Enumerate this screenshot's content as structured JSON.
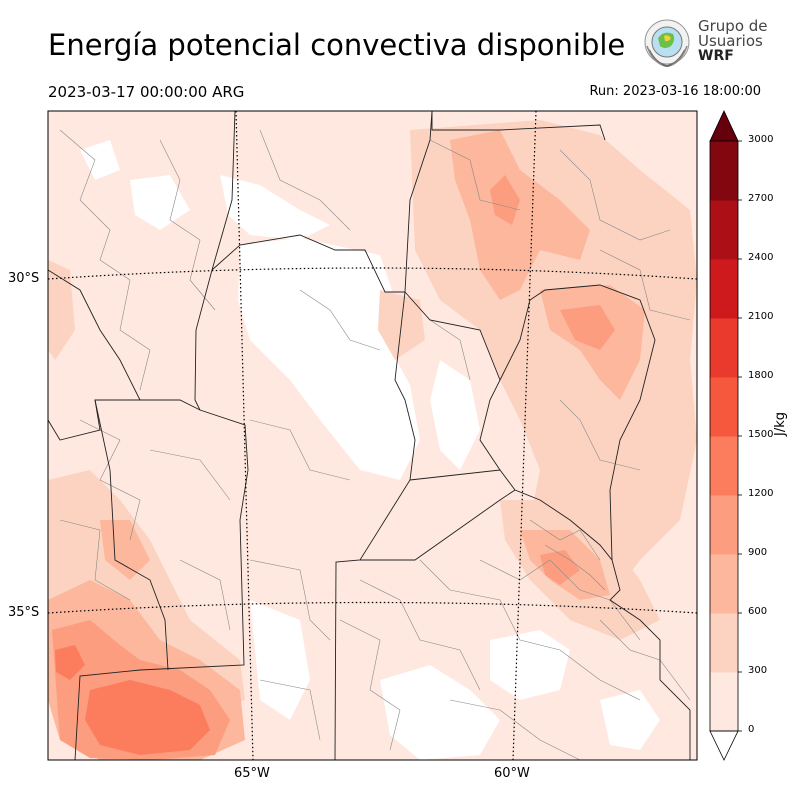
{
  "header": {
    "title": "Energía potencial convectiva disponible",
    "valid_time": "2023-03-17 00:00:00 ARG",
    "run_time": "Run: 2023-03-16 18:00:00"
  },
  "logo": {
    "line1": "Grupo de",
    "line2": "Usuarios",
    "line3": "WRF"
  },
  "map": {
    "lat_labels": [
      "30°S",
      "35°S"
    ],
    "lon_labels": [
      "65°W",
      "60°W"
    ]
  },
  "colorbar": {
    "unit": "J/kg",
    "ticks": [
      "0",
      "300",
      "600",
      "900",
      "1200",
      "1500",
      "1800",
      "2100",
      "2400",
      "2700",
      "3000"
    ],
    "levels": [
      0,
      300,
      600,
      900,
      1200,
      1500,
      1800,
      2100,
      2400,
      2700,
      3000
    ],
    "colors": [
      "#fee8df",
      "#fcd3c1",
      "#fcb79c",
      "#fc9d7f",
      "#fb7d5d",
      "#f6583e",
      "#ea3a2e",
      "#cf1a1d",
      "#ac1016",
      "#82070f"
    ],
    "over_color": "#67000d",
    "under_color": "#ffffff"
  }
}
